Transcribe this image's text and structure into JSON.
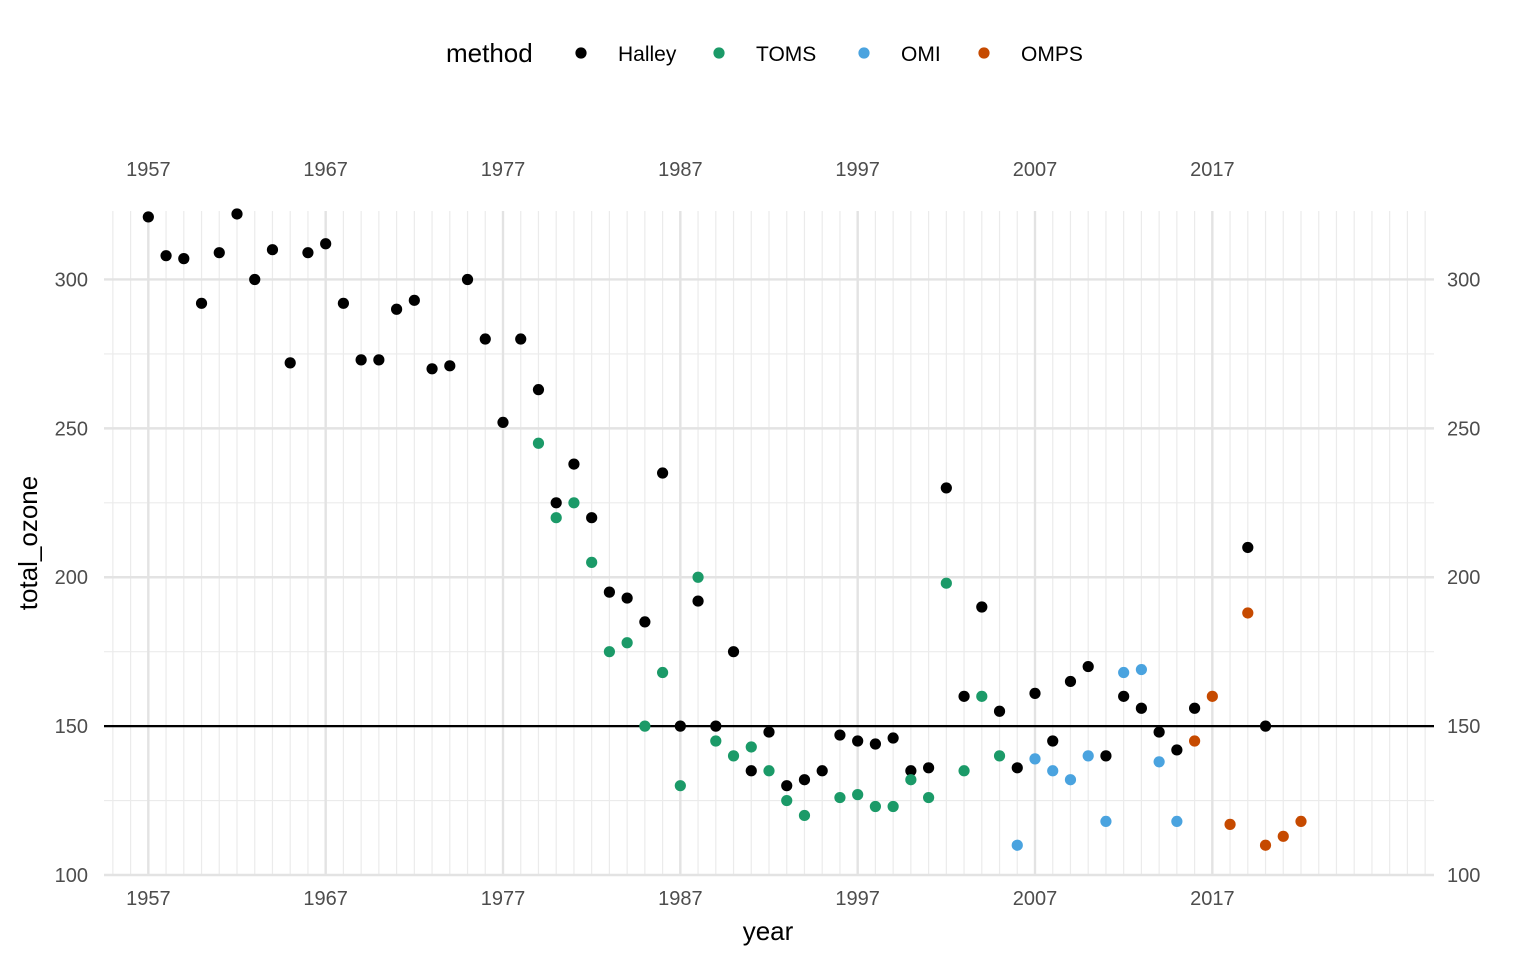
{
  "chart_data": {
    "type": "scatter",
    "xlabel": "year",
    "ylabel": "total_ozone",
    "xlim": [
      1954.5,
      2029.5
    ],
    "ylim": [
      100,
      323
    ],
    "x_ticks": [
      1957,
      1967,
      1977,
      1987,
      1997,
      2007,
      2017
    ],
    "y_ticks": [
      100,
      150,
      200,
      250,
      300
    ],
    "grid": true,
    "secondary_x_axis": "top",
    "secondary_y_axis": "right",
    "reference_line": {
      "y": 150,
      "color": "#000000"
    },
    "legend": {
      "title": "method",
      "position": "top",
      "entries": [
        "Halley",
        "TOMS",
        "OMI",
        "OMPS"
      ]
    },
    "colors": {
      "Halley": "#000000",
      "TOMS": "#1b9a68",
      "OMI": "#4aa3df",
      "OMPS": "#c64a00"
    },
    "series": [
      {
        "name": "Halley",
        "points": [
          [
            1957,
            321
          ],
          [
            1958,
            308
          ],
          [
            1959,
            307
          ],
          [
            1960,
            292
          ],
          [
            1961,
            309
          ],
          [
            1962,
            322
          ],
          [
            1963,
            300
          ],
          [
            1964,
            310
          ],
          [
            1965,
            272
          ],
          [
            1966,
            309
          ],
          [
            1967,
            312
          ],
          [
            1968,
            292
          ],
          [
            1969,
            273
          ],
          [
            1970,
            273
          ],
          [
            1971,
            290
          ],
          [
            1972,
            293
          ],
          [
            1973,
            270
          ],
          [
            1974,
            271
          ],
          [
            1975,
            300
          ],
          [
            1976,
            280
          ],
          [
            1977,
            252
          ],
          [
            1978,
            280
          ],
          [
            1979,
            263
          ],
          [
            1980,
            225
          ],
          [
            1981,
            238
          ],
          [
            1982,
            220
          ],
          [
            1983,
            195
          ],
          [
            1984,
            193
          ],
          [
            1985,
            185
          ],
          [
            1986,
            235
          ],
          [
            1987,
            150
          ],
          [
            1988,
            192
          ],
          [
            1989,
            150
          ],
          [
            1990,
            175
          ],
          [
            1991,
            135
          ],
          [
            1992,
            148
          ],
          [
            1993,
            130
          ],
          [
            1994,
            132
          ],
          [
            1995,
            135
          ],
          [
            1996,
            147
          ],
          [
            1997,
            145
          ],
          [
            1998,
            144
          ],
          [
            1999,
            146
          ],
          [
            2000,
            135
          ],
          [
            2001,
            136
          ],
          [
            2002,
            230
          ],
          [
            2003,
            160
          ],
          [
            2004,
            190
          ],
          [
            2005,
            155
          ],
          [
            2006,
            136
          ],
          [
            2007,
            161
          ],
          [
            2008,
            145
          ],
          [
            2009,
            165
          ],
          [
            2010,
            170
          ],
          [
            2011,
            140
          ],
          [
            2012,
            160
          ],
          [
            2013,
            156
          ],
          [
            2014,
            148
          ],
          [
            2015,
            142
          ],
          [
            2016,
            156
          ],
          [
            2019,
            210
          ],
          [
            2020,
            150
          ]
        ]
      },
      {
        "name": "TOMS",
        "points": [
          [
            1979,
            245
          ],
          [
            1980,
            220
          ],
          [
            1981,
            225
          ],
          [
            1982,
            205
          ],
          [
            1983,
            175
          ],
          [
            1984,
            178
          ],
          [
            1985,
            150
          ],
          [
            1986,
            168
          ],
          [
            1987,
            130
          ],
          [
            1988,
            200
          ],
          [
            1989,
            145
          ],
          [
            1990,
            140
          ],
          [
            1991,
            143
          ],
          [
            1992,
            135
          ],
          [
            1993,
            125
          ],
          [
            1994,
            120
          ],
          [
            1996,
            126
          ],
          [
            1997,
            127
          ],
          [
            1998,
            123
          ],
          [
            1999,
            123
          ],
          [
            2000,
            132
          ],
          [
            2001,
            126
          ],
          [
            2002,
            198
          ],
          [
            2003,
            135
          ],
          [
            2004,
            160
          ],
          [
            2005,
            140
          ]
        ]
      },
      {
        "name": "OMI",
        "points": [
          [
            2006,
            110
          ],
          [
            2007,
            139
          ],
          [
            2008,
            135
          ],
          [
            2009,
            132
          ],
          [
            2010,
            140
          ],
          [
            2011,
            118
          ],
          [
            2012,
            168
          ],
          [
            2013,
            169
          ],
          [
            2014,
            138
          ],
          [
            2015,
            118
          ]
        ]
      },
      {
        "name": "OMPS",
        "points": [
          [
            2016,
            145
          ],
          [
            2017,
            160
          ],
          [
            2018,
            117
          ],
          [
            2019,
            188
          ],
          [
            2020,
            110
          ],
          [
            2021,
            113
          ],
          [
            2022,
            118
          ]
        ]
      }
    ]
  }
}
